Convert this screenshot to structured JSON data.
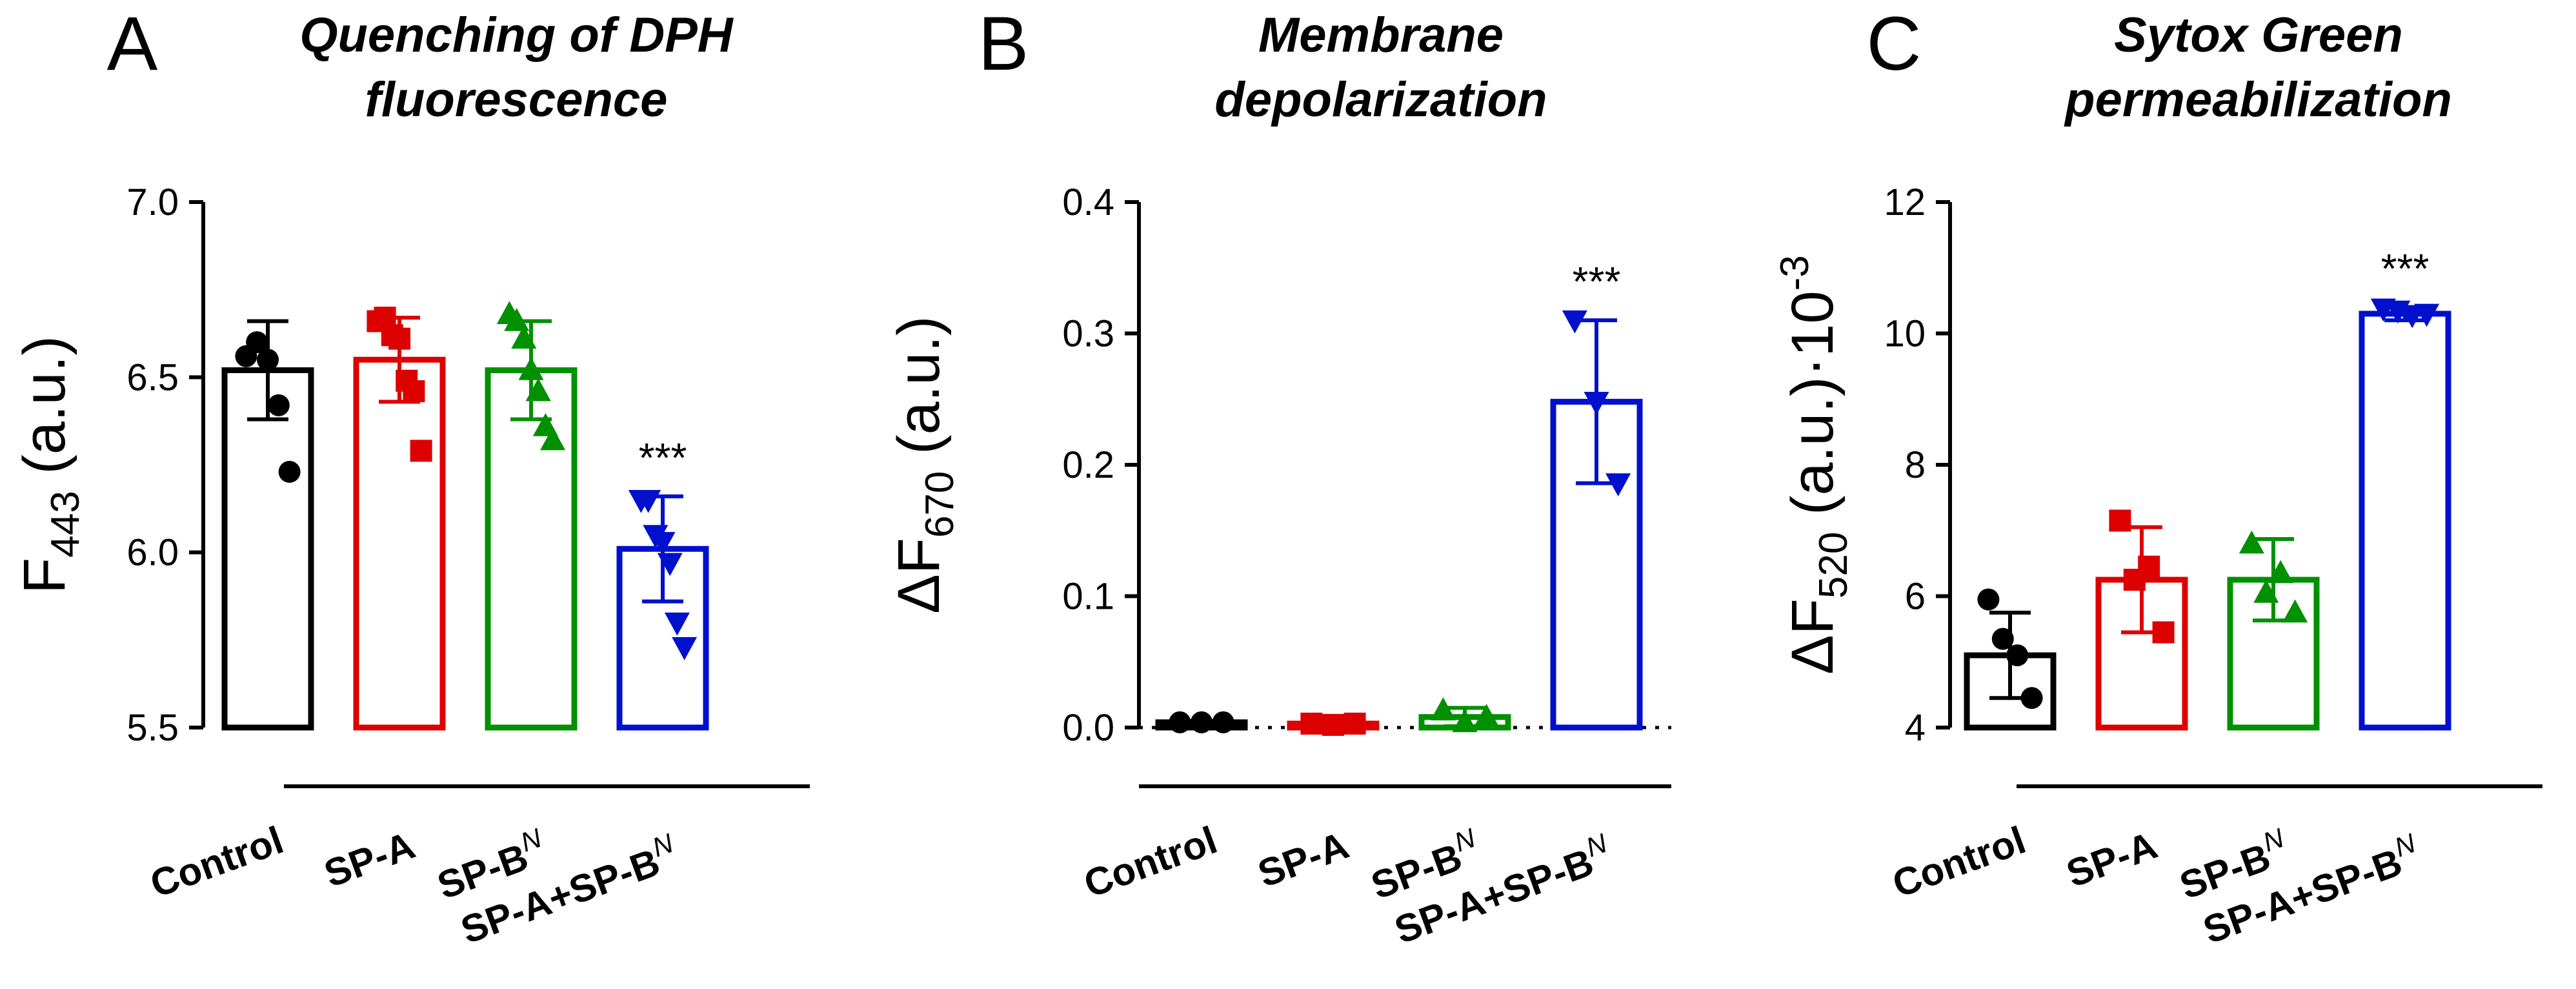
{
  "figure": {
    "style": {
      "axis_color": "#000000",
      "series_colors": [
        "#000000",
        "#dd0000",
        "#009000",
        "#0010cc"
      ]
    }
  },
  "chart_data": [
    {
      "panel_label": "A",
      "type": "bar",
      "title_lines": [
        "Quenching of DPH",
        "fluorescence"
      ],
      "ylabel_main": "F",
      "ylabel_sub": "443",
      "ylabel_tail": " (a.u.)",
      "ylim": [
        5.5,
        7.0
      ],
      "yticks": [
        5.5,
        6.0,
        6.5,
        7.0
      ],
      "ytick_labels": [
        "5.5",
        "6.0",
        "6.5",
        "7.0"
      ],
      "baseline_dotted": false,
      "categories": [
        "Control",
        "SP-A",
        "SP-B",
        "SP-A+SP-B"
      ],
      "category_superscripts": [
        "",
        "",
        "N",
        "N"
      ],
      "bars": [
        {
          "mean": 6.52,
          "sd": 0.14,
          "marker": "circle",
          "points": [
            6.56,
            6.6,
            6.55,
            6.42,
            6.23
          ]
        },
        {
          "mean": 6.55,
          "sd": 0.12,
          "marker": "square",
          "points": [
            6.66,
            6.67,
            6.62,
            6.61,
            6.49,
            6.46,
            6.29
          ]
        },
        {
          "mean": 6.52,
          "sd": 0.14,
          "marker": "triangle-up",
          "points": [
            6.68,
            6.66,
            6.61,
            6.52,
            6.46,
            6.36,
            6.32
          ]
        },
        {
          "mean": 6.01,
          "sd": 0.15,
          "marker": "triangle-down",
          "points": [
            6.15,
            6.15,
            6.05,
            6.03,
            5.97,
            5.8,
            5.73
          ]
        }
      ],
      "significance": [
        "",
        "",
        "",
        "***"
      ]
    },
    {
      "panel_label": "B",
      "type": "bar",
      "title_lines": [
        "Membrane",
        "depolarization"
      ],
      "ylabel_main": "ΔF",
      "ylabel_sub": "670",
      "ylabel_tail": " (a.u.)",
      "ylim": [
        0.0,
        0.4
      ],
      "yticks": [
        0.0,
        0.1,
        0.2,
        0.3,
        0.4
      ],
      "ytick_labels": [
        "0.0",
        "0.1",
        "0.2",
        "0.3",
        "0.4"
      ],
      "baseline_dotted": true,
      "categories": [
        "Control",
        "SP-A",
        "SP-B",
        "SP-A+SP-B"
      ],
      "category_superscripts": [
        "",
        "",
        "N",
        "N"
      ],
      "bars": [
        {
          "mean": 0.004,
          "sd": 0.001,
          "marker": "circle",
          "points": [
            0.004,
            0.004,
            0.004
          ]
        },
        {
          "mean": 0.003,
          "sd": 0.001,
          "marker": "square",
          "points": [
            0.003,
            0.002,
            0.003
          ]
        },
        {
          "mean": 0.008,
          "sd": 0.007,
          "marker": "triangle-up",
          "points": [
            0.013,
            0.004,
            0.008
          ]
        },
        {
          "mean": 0.248,
          "sd": 0.062,
          "marker": "triangle-down",
          "points": [
            0.31,
            0.248,
            0.186
          ]
        }
      ],
      "significance": [
        "",
        "",
        "",
        "***"
      ]
    },
    {
      "panel_label": "C",
      "type": "bar",
      "title_lines": [
        "Sytox Green",
        "permeabilization"
      ],
      "ylabel_main": "ΔF",
      "ylabel_sub": "520",
      "ylabel_tail": " (a.u.)·10",
      "ylabel_sup": "-3",
      "ylim": [
        4,
        12
      ],
      "yticks": [
        4,
        6,
        8,
        10,
        12
      ],
      "ytick_labels": [
        "4",
        "6",
        "8",
        "10",
        "12"
      ],
      "baseline_dotted": false,
      "categories": [
        "Control",
        "SP-A",
        "SP-B",
        "SP-A+SP-B"
      ],
      "category_superscripts": [
        "",
        "",
        "N",
        "N"
      ],
      "bars": [
        {
          "mean": 5.1,
          "sd": 0.65,
          "marker": "circle",
          "points": [
            5.95,
            5.35,
            5.1,
            4.45
          ]
        },
        {
          "mean": 6.25,
          "sd": 0.8,
          "marker": "square",
          "points": [
            7.15,
            6.25,
            6.45,
            5.45
          ]
        },
        {
          "mean": 6.25,
          "sd": 0.62,
          "marker": "triangle-up",
          "points": [
            6.8,
            6.05,
            6.35,
            5.75
          ]
        },
        {
          "mean": 10.3,
          "sd": 0.1,
          "marker": "triangle-down",
          "points": [
            10.38,
            10.35,
            10.28,
            10.3
          ]
        }
      ],
      "significance": [
        "",
        "",
        "",
        "***"
      ]
    }
  ]
}
